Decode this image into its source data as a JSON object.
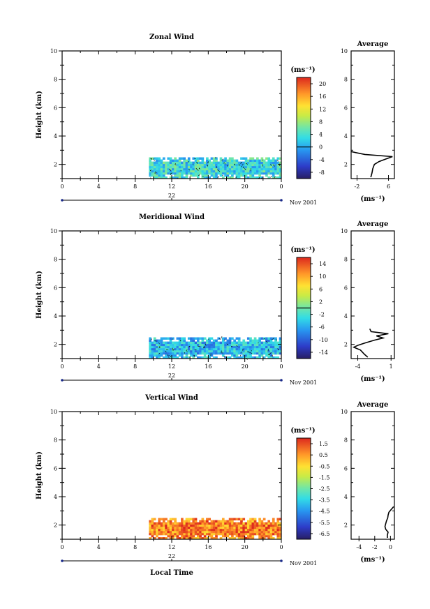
{
  "chart_data": [
    {
      "type": "heatmap",
      "title": "Zonal Wind",
      "ylabel": "Height (km)",
      "xlabel": "",
      "xlim": [
        0,
        24
      ],
      "ylim": [
        1,
        10
      ],
      "xticks": [
        "0",
        "4",
        "8",
        "12",
        "16",
        "20",
        "0"
      ],
      "yticks": [
        "2",
        "4",
        "6",
        "8",
        "10"
      ],
      "date_label": "22",
      "month_label": "Nov 2001",
      "colorbar": {
        "unit_label": "(ms⁻¹)",
        "ticks": [
          "-8",
          "-4",
          "0",
          "4",
          "8",
          "12",
          "16",
          "20"
        ],
        "range": [
          -10,
          22
        ],
        "contour_at": 0
      },
      "data_extent": {
        "x": [
          9.5,
          24
        ],
        "y": [
          1,
          2.5
        ]
      },
      "typical_value": 3,
      "average": {
        "title": "Average",
        "xlabel": "(ms⁻¹)",
        "xticks": [
          "-2",
          "6"
        ],
        "xlim": [
          -3.5,
          7.5
        ],
        "profile": [
          [
            1.1,
            1.5
          ],
          [
            1.4,
            1.8
          ],
          [
            1.7,
            2.0
          ],
          [
            2.0,
            2.4
          ],
          [
            2.2,
            3.6
          ],
          [
            2.35,
            5.0
          ],
          [
            2.55,
            7.0
          ],
          [
            2.7,
            0.0
          ],
          [
            2.9,
            -3.5
          ]
        ]
      }
    },
    {
      "type": "heatmap",
      "title": "Meridional Wind",
      "ylabel": "Height (km)",
      "xlabel": "",
      "xlim": [
        0,
        24
      ],
      "ylim": [
        1,
        10
      ],
      "xticks": [
        "0",
        "4",
        "8",
        "12",
        "16",
        "20",
        "0"
      ],
      "yticks": [
        "2",
        "4",
        "6",
        "8",
        "10"
      ],
      "date_label": "22",
      "month_label": "Nov 2001",
      "colorbar": {
        "unit_label": "(ms⁻¹)",
        "ticks": [
          "-14",
          "-10",
          "-6",
          "-2",
          "2",
          "6",
          "10",
          "14"
        ],
        "range": [
          -16,
          16
        ],
        "contour_at": 0
      },
      "data_extent": {
        "x": [
          9.5,
          24
        ],
        "y": [
          1,
          2.5
        ]
      },
      "typical_value": -5,
      "average": {
        "title": "Average",
        "xlabel": "(ms⁻¹)",
        "xticks": [
          "-4",
          "1"
        ],
        "xlim": [
          -5,
          1.5
        ],
        "profile": [
          [
            1.1,
            -2.5
          ],
          [
            1.3,
            -3.0
          ],
          [
            1.6,
            -3.6
          ],
          [
            1.8,
            -4.6
          ],
          [
            1.95,
            -3.9
          ],
          [
            2.1,
            -2.9
          ],
          [
            2.3,
            -1.5
          ],
          [
            2.45,
            -0.2
          ],
          [
            2.6,
            -1.2
          ],
          [
            2.75,
            0.6
          ],
          [
            2.9,
            -2.0
          ],
          [
            3.1,
            -2.2
          ]
        ]
      }
    },
    {
      "type": "heatmap",
      "title": "Vertical Wind",
      "ylabel": "Height (km)",
      "xlabel": "Local Time",
      "xlim": [
        0,
        24
      ],
      "ylim": [
        1,
        10
      ],
      "xticks": [
        "0",
        "4",
        "8",
        "12",
        "16",
        "20",
        "0"
      ],
      "yticks": [
        "2",
        "4",
        "6",
        "8",
        "10"
      ],
      "date_label": "22",
      "month_label": "Nov 2001",
      "colorbar": {
        "unit_label": "(ms⁻¹)",
        "ticks": [
          "-6.5",
          "-5.5",
          "-4.5",
          "-3.5",
          "-2.5",
          "-1.5",
          "-0.5",
          "0.5",
          "1.5"
        ],
        "range": [
          -7,
          2
        ],
        "contour_at": null
      },
      "data_extent": {
        "x": [
          9.5,
          24
        ],
        "y": [
          1,
          2.5
        ]
      },
      "typical_value": 0.8,
      "average": {
        "title": "Average",
        "xlabel": "(ms⁻¹)",
        "xticks": [
          "-4",
          "-2",
          "0"
        ],
        "xlim": [
          -5,
          0.5
        ],
        "profile": [
          [
            1.1,
            -0.4
          ],
          [
            1.3,
            -0.4
          ],
          [
            1.5,
            -0.3
          ],
          [
            1.7,
            -0.6
          ],
          [
            1.9,
            -0.7
          ],
          [
            2.1,
            -0.6
          ],
          [
            2.3,
            -0.5
          ],
          [
            2.5,
            -0.35
          ],
          [
            2.7,
            -0.3
          ],
          [
            2.9,
            -0.2
          ],
          [
            3.1,
            0.1
          ],
          [
            3.3,
            0.4
          ]
        ]
      }
    }
  ]
}
